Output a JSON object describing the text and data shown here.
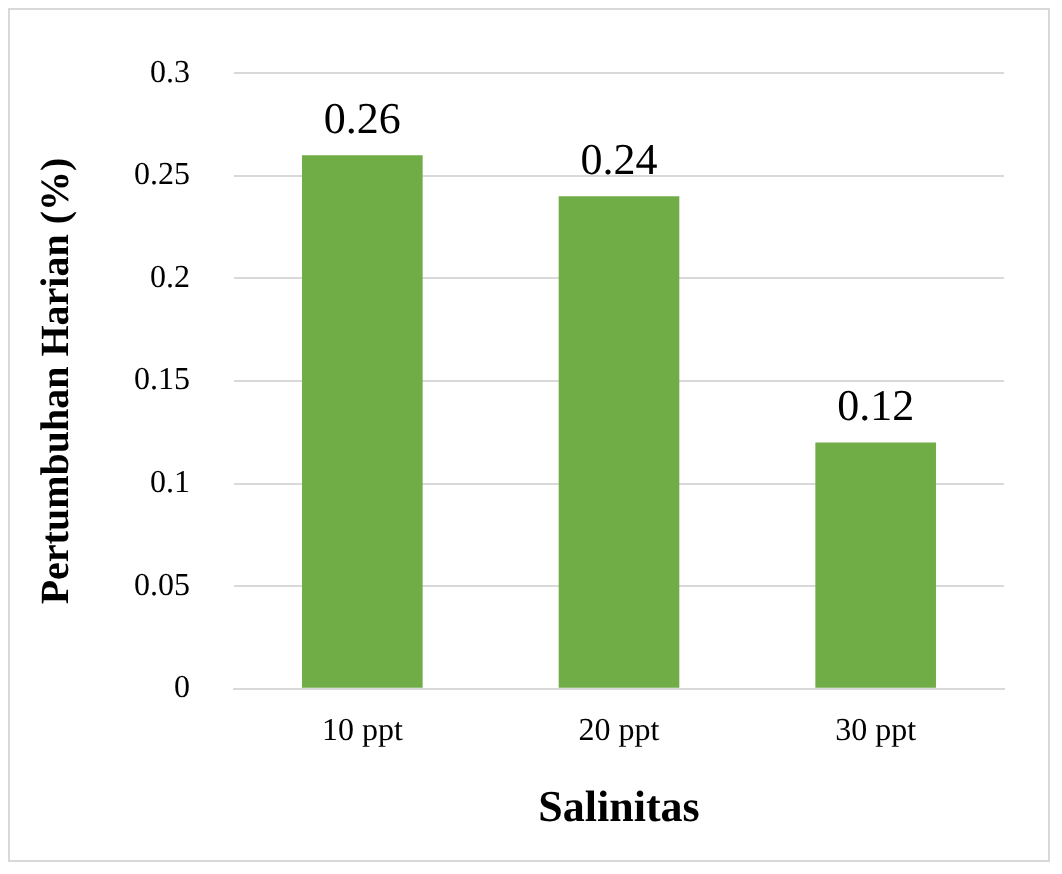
{
  "chart_data": {
    "type": "bar",
    "xlabel": "Salinitas",
    "ylabel": "Pertumbuhan Harian (%)",
    "categories": [
      "10 ppt",
      "20 ppt",
      "30 ppt"
    ],
    "values": [
      0.26,
      0.24,
      0.12
    ],
    "color": "#70ad47",
    "ylim": [
      0,
      0.3
    ],
    "yticks": [
      0,
      0.05,
      0.1,
      0.15,
      0.2,
      0.25,
      0.3
    ],
    "grid": "y",
    "data_labels": true
  }
}
